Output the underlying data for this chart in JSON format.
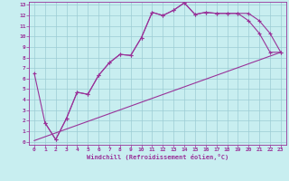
{
  "xlabel": "Windchill (Refroidissement éolien,°C)",
  "bg_color": "#c8eef0",
  "grid_color": "#9cccd4",
  "line_color": "#993399",
  "xlim": [
    -0.5,
    23.5
  ],
  "ylim": [
    -0.3,
    13.3
  ],
  "xticks": [
    0,
    1,
    2,
    3,
    4,
    5,
    6,
    7,
    8,
    9,
    10,
    11,
    12,
    13,
    14,
    15,
    16,
    17,
    18,
    19,
    20,
    21,
    22,
    23
  ],
  "yticks": [
    0,
    1,
    2,
    3,
    4,
    5,
    6,
    7,
    8,
    9,
    10,
    11,
    12,
    13
  ],
  "line1_x": [
    0,
    1,
    2,
    3,
    4,
    5,
    6,
    7,
    8,
    9,
    10,
    11,
    12,
    13,
    14,
    15,
    16,
    17,
    18,
    19,
    20,
    21,
    22,
    23
  ],
  "line1_y": [
    6.5,
    1.8,
    0.2,
    2.2,
    4.7,
    4.5,
    6.3,
    7.5,
    8.3,
    8.2,
    9.9,
    12.3,
    12.0,
    12.5,
    13.2,
    12.1,
    12.3,
    12.2,
    12.2,
    12.2,
    12.2,
    11.5,
    10.3,
    8.5
  ],
  "line2_x": [
    0,
    23
  ],
  "line2_y": [
    0.1,
    8.5
  ],
  "line3_x": [
    1,
    2,
    3,
    4,
    5,
    6,
    7,
    8,
    9,
    10,
    11,
    12,
    13,
    14,
    15,
    16,
    17,
    18,
    19,
    20,
    21,
    22,
    23
  ],
  "line3_y": [
    1.8,
    0.2,
    2.2,
    4.7,
    4.5,
    6.3,
    7.5,
    8.3,
    8.2,
    9.9,
    12.3,
    12.0,
    12.5,
    13.2,
    12.1,
    12.3,
    12.2,
    12.2,
    12.2,
    11.5,
    10.3,
    8.5,
    8.5
  ]
}
